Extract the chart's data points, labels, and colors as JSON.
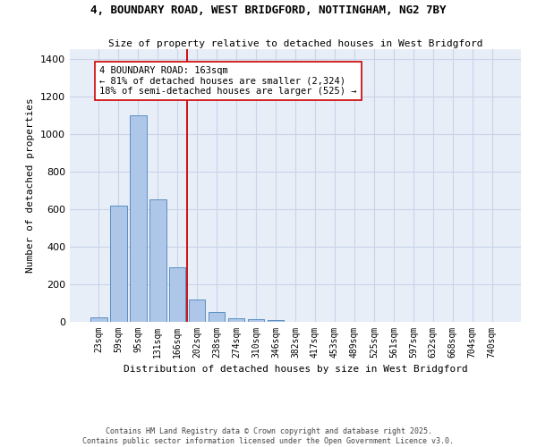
{
  "title_line1": "4, BOUNDARY ROAD, WEST BRIDGFORD, NOTTINGHAM, NG2 7BY",
  "title_line2": "Size of property relative to detached houses in West Bridgford",
  "xlabel": "Distribution of detached houses by size in West Bridgford",
  "ylabel": "Number of detached properties",
  "bar_labels": [
    "23sqm",
    "59sqm",
    "95sqm",
    "131sqm",
    "166sqm",
    "202sqm",
    "238sqm",
    "274sqm",
    "310sqm",
    "346sqm",
    "382sqm",
    "417sqm",
    "453sqm",
    "489sqm",
    "525sqm",
    "561sqm",
    "597sqm",
    "632sqm",
    "668sqm",
    "704sqm",
    "740sqm"
  ],
  "bar_values": [
    25,
    620,
    1100,
    650,
    290,
    120,
    50,
    20,
    15,
    10,
    0,
    0,
    0,
    0,
    0,
    0,
    0,
    0,
    0,
    0,
    0
  ],
  "bar_color": "#aec6e8",
  "bar_edge_color": "#5a8fc2",
  "bg_color": "#e8eef8",
  "grid_color": "#c8d4e8",
  "vline_color": "#cc0000",
  "vline_x": 4.5,
  "annotation_text": "4 BOUNDARY ROAD: 163sqm\n← 81% of detached houses are smaller (2,324)\n18% of semi-detached houses are larger (525) →",
  "footer_line1": "Contains HM Land Registry data © Crown copyright and database right 2025.",
  "footer_line2": "Contains public sector information licensed under the Open Government Licence v3.0.",
  "ylim": [
    0,
    1450
  ],
  "yticks": [
    0,
    200,
    400,
    600,
    800,
    1000,
    1200,
    1400
  ]
}
